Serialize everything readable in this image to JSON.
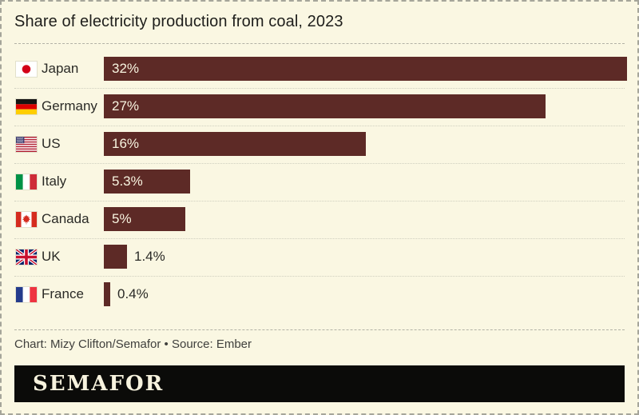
{
  "title": "Share of electricity production from coal, 2023",
  "chart_data": {
    "type": "bar",
    "orientation": "horizontal",
    "title": "Share of electricity production from coal, 2023",
    "categories": [
      "Japan",
      "Germany",
      "US",
      "Italy",
      "Canada",
      "UK",
      "France"
    ],
    "values": [
      32,
      27,
      16,
      5.3,
      5,
      1.4,
      0.4
    ],
    "value_labels": [
      "32%",
      "27%",
      "16%",
      "5.3%",
      "5%",
      "1.4%",
      "0.4%"
    ],
    "value_label_position": [
      "inside",
      "inside",
      "inside",
      "inside",
      "inside",
      "outside",
      "outside"
    ],
    "flag_icons": [
      "japan-flag-icon",
      "germany-flag-icon",
      "us-flag-icon",
      "italy-flag-icon",
      "canada-flag-icon",
      "uk-flag-icon",
      "france-flag-icon"
    ],
    "unit": "%",
    "xlim": [
      0,
      32
    ],
    "grid": false,
    "legend": false,
    "bar_color": "#5d2a26"
  },
  "footer": {
    "attribution": "Chart: Mizy Clifton/Semafor • Source: Ember",
    "logo_text": "SEMAFOR"
  },
  "colors": {
    "background": "#faf7e2",
    "bar": "#5d2a26",
    "value_inside_text": "#f8f4e0",
    "text_dark": "#2a2a26",
    "title_text": "#1e1e1b",
    "attribution_text": "#3f3f3c",
    "logo_background": "#0b0b09",
    "logo_text": "#f7f3de",
    "separator": "#b2b2a6",
    "row_separator": "#cfcfbf",
    "outer_border": "#a5a59a"
  }
}
